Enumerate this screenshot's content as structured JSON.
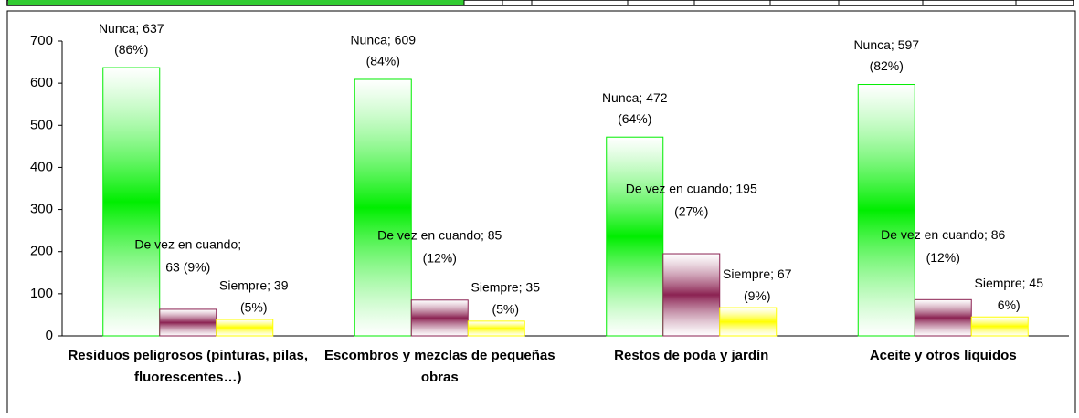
{
  "chart_data": {
    "type": "bar",
    "categories": [
      "Residuos peligrosos (pinturas, pilas, fluorescentes…)",
      "Escombros y mezclas de pequeñas obras",
      "Restos de poda y jardín",
      "Aceite y otros líquidos"
    ],
    "series": [
      {
        "name": "Nunca",
        "color": "#00ee00",
        "values": [
          637,
          609,
          472,
          597
        ],
        "value_labels": [
          [
            "Nunca; 637",
            "(86%)"
          ],
          [
            "Nunca; 609",
            "(84%)"
          ],
          [
            "Nunca; 472",
            "(64%)"
          ],
          [
            "Nunca; 597",
            "(82%)"
          ]
        ]
      },
      {
        "name": "De vez en cuando",
        "color": "#8b2252",
        "values": [
          63,
          85,
          195,
          86
        ],
        "value_labels": [
          [
            "De vez en cuando;",
            "63 (9%)"
          ],
          [
            "De vez en cuando; 85",
            "(12%)"
          ],
          [
            "De vez en cuando; 195",
            "(27%)"
          ],
          [
            "De vez en cuando; 86",
            "(12%)"
          ]
        ]
      },
      {
        "name": "Siempre",
        "color": "#ffff00",
        "values": [
          39,
          35,
          67,
          45
        ],
        "value_labels": [
          [
            "Siempre; 39",
            "(5%)"
          ],
          [
            "Siempre; 35",
            "(5%)"
          ],
          [
            "Siempre; 67",
            "(9%)"
          ],
          [
            "Siempre; 45",
            "6%)"
          ]
        ]
      }
    ],
    "ylim": [
      0,
      700
    ],
    "yticks": [
      0,
      100,
      200,
      300,
      400,
      500,
      600,
      700
    ]
  }
}
